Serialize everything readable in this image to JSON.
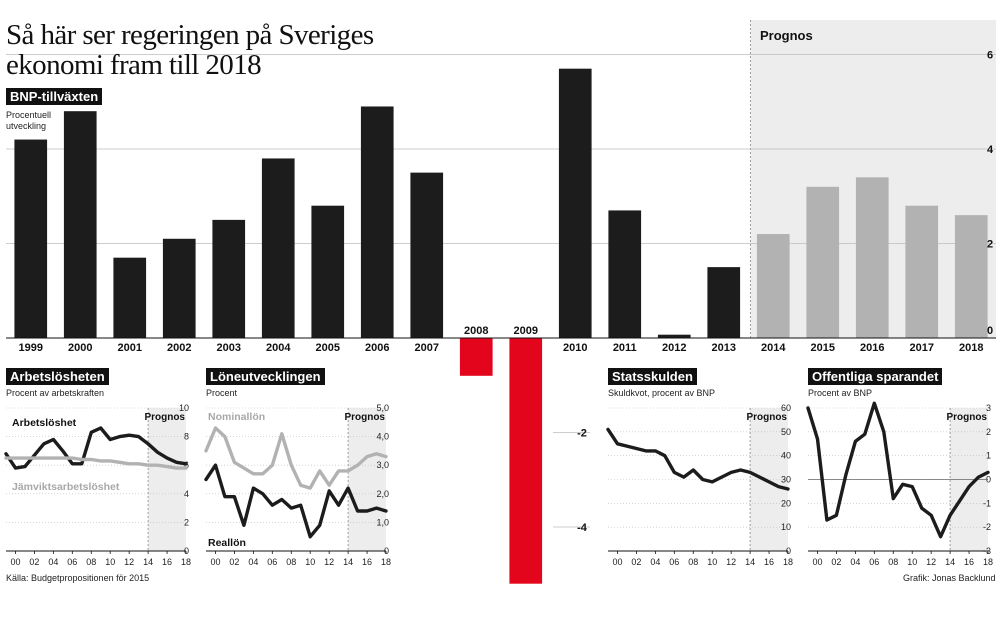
{
  "headline": {
    "line1": "Så här ser regeringen på Sveriges",
    "line2": "ekonomi  fram till 2018"
  },
  "source": "Källa: Budgetpropositionen för 2015",
  "credit": "Grafik: Jonas Backlund",
  "colors": {
    "actual": "#1c1c1c",
    "forecast": "#b2b2b2",
    "negative": "#e3051b",
    "forecast_bg": "#ededed",
    "grid": "#bdbdbd"
  },
  "chart_data": [
    {
      "id": "bnp",
      "type": "bar",
      "title": "BNP-tillväxten",
      "subtitle": "Procentuell utveckling",
      "forecast_label": "Prognos",
      "categories": [
        "1999",
        "2000",
        "2001",
        "2002",
        "2003",
        "2004",
        "2005",
        "2006",
        "2007",
        "2008",
        "2009",
        "2010",
        "2011",
        "2012",
        "2013",
        "2014",
        "2015",
        "2016",
        "2017",
        "2018"
      ],
      "values": [
        4.2,
        4.8,
        1.7,
        2.1,
        2.5,
        3.8,
        2.8,
        4.9,
        3.5,
        -0.8,
        -5.2,
        5.7,
        2.7,
        0.07,
        1.5,
        2.2,
        3.2,
        3.4,
        2.8,
        2.6
      ],
      "forecast_from": "2014",
      "y_ticks": [
        -4,
        -2,
        0,
        2,
        4,
        6
      ],
      "ylim": [
        -5.2,
        6.2
      ],
      "grid": true
    },
    {
      "id": "arbetsloshet",
      "type": "line",
      "title": "Arbetslösheten",
      "subtitle": "Procent av arbetskraften",
      "forecast_label": "Prognos",
      "x_ticks": [
        "00",
        "02",
        "04",
        "06",
        "08",
        "10",
        "12",
        "14",
        "16",
        "18"
      ],
      "y_ticks": [
        "0",
        "2",
        "4",
        "6",
        "8",
        "10"
      ],
      "ylim": [
        0,
        10
      ],
      "series": [
        {
          "name": "Arbetslöshet",
          "style": "actual",
          "x": [
            1999,
            2000,
            2001,
            2002,
            2003,
            2004,
            2005,
            2006,
            2007,
            2008,
            2009,
            2010,
            2011,
            2012,
            2013,
            2014,
            2015,
            2016,
            2017,
            2018
          ],
          "y": [
            6.8,
            5.8,
            5.9,
            6.7,
            7.5,
            7.8,
            7.0,
            6.1,
            6.1,
            8.3,
            8.6,
            7.8,
            8.0,
            8.1,
            8.0,
            7.5,
            6.9,
            6.5,
            6.2,
            6.1
          ]
        },
        {
          "name": "Jämviktsarbetslöshet",
          "style": "forecast",
          "x": [
            1999,
            2000,
            2001,
            2002,
            2003,
            2004,
            2005,
            2006,
            2007,
            2008,
            2009,
            2010,
            2011,
            2012,
            2013,
            2014,
            2015,
            2016,
            2017,
            2018
          ],
          "y": [
            6.5,
            6.5,
            6.5,
            6.5,
            6.5,
            6.5,
            6.5,
            6.5,
            6.4,
            6.4,
            6.3,
            6.3,
            6.2,
            6.1,
            6.1,
            6.0,
            6.0,
            5.9,
            5.8,
            5.8
          ]
        }
      ],
      "forecast_from": 2014
    },
    {
      "id": "loneutveckling",
      "type": "line",
      "title": "Löneutvecklingen",
      "subtitle": "Procent",
      "forecast_label": "Prognos",
      "x_ticks": [
        "00",
        "02",
        "04",
        "06",
        "08",
        "10",
        "12",
        "14",
        "16",
        "18"
      ],
      "y_ticks": [
        "0",
        "1,0",
        "2,0",
        "3,0",
        "4,0",
        "5,0"
      ],
      "ylim": [
        0,
        5
      ],
      "series": [
        {
          "name": "Nominallön",
          "style": "forecast",
          "x": [
            1999,
            2000,
            2001,
            2002,
            2003,
            2004,
            2005,
            2006,
            2007,
            2008,
            2009,
            2010,
            2011,
            2012,
            2013,
            2014,
            2015,
            2016,
            2017,
            2018
          ],
          "y": [
            3.5,
            4.3,
            4.0,
            3.1,
            2.9,
            2.7,
            2.7,
            3.0,
            4.1,
            3.0,
            2.3,
            2.2,
            2.8,
            2.3,
            2.8,
            2.8,
            3.0,
            3.3,
            3.4,
            3.3
          ]
        },
        {
          "name": "Reallön",
          "style": "actual",
          "x": [
            1999,
            2000,
            2001,
            2002,
            2003,
            2004,
            2005,
            2006,
            2007,
            2008,
            2009,
            2010,
            2011,
            2012,
            2013,
            2014,
            2015,
            2016,
            2017,
            2018
          ],
          "y": [
            2.5,
            3.0,
            1.9,
            1.9,
            0.9,
            2.2,
            2.0,
            1.6,
            1.8,
            1.5,
            1.6,
            0.5,
            0.9,
            2.1,
            1.6,
            2.2,
            1.4,
            1.4,
            1.5,
            1.4
          ]
        }
      ],
      "forecast_from": 2014
    },
    {
      "id": "statsskulden",
      "type": "line",
      "title": "Statsskulden",
      "subtitle": "Skuldkvot, procent av BNP",
      "forecast_label": "Prognos",
      "x_ticks": [
        "00",
        "02",
        "04",
        "06",
        "08",
        "10",
        "12",
        "14",
        "16",
        "18"
      ],
      "y_ticks": [
        "0",
        "10",
        "20",
        "30",
        "40",
        "50",
        "60"
      ],
      "ylim": [
        0,
        60
      ],
      "series": [
        {
          "name": "",
          "style": "actual",
          "x": [
            1999,
            2000,
            2001,
            2002,
            2003,
            2004,
            2005,
            2006,
            2007,
            2008,
            2009,
            2010,
            2011,
            2012,
            2013,
            2014,
            2015,
            2016,
            2017,
            2018
          ],
          "y": [
            51,
            45,
            44,
            43,
            42,
            42,
            40,
            33,
            31,
            34,
            30,
            29,
            31,
            33,
            34,
            33,
            31,
            29,
            27,
            26
          ]
        }
      ],
      "forecast_from": 2014
    },
    {
      "id": "offentliga",
      "type": "line",
      "title": "Offentliga sparandet",
      "subtitle": "Procent av BNP",
      "forecast_label": "Prognos",
      "x_ticks": [
        "00",
        "02",
        "04",
        "06",
        "08",
        "10",
        "12",
        "14",
        "16",
        "18"
      ],
      "y_ticks": [
        "-3",
        "-2",
        "-1",
        "0",
        "1",
        "2",
        "3"
      ],
      "ylim": [
        -3,
        3
      ],
      "series": [
        {
          "name": "",
          "style": "actual",
          "x": [
            1999,
            2000,
            2001,
            2002,
            2003,
            2004,
            2005,
            2006,
            2007,
            2008,
            2009,
            2010,
            2011,
            2012,
            2013,
            2014,
            2015,
            2016,
            2017,
            2018
          ],
          "y": [
            3.0,
            1.7,
            -1.7,
            -1.5,
            0.2,
            1.6,
            1.9,
            3.2,
            2.0,
            -0.8,
            -0.2,
            -0.3,
            -1.2,
            -1.5,
            -2.4,
            -1.5,
            -0.9,
            -0.3,
            0.1,
            0.3
          ]
        }
      ],
      "forecast_from": 2014
    }
  ]
}
